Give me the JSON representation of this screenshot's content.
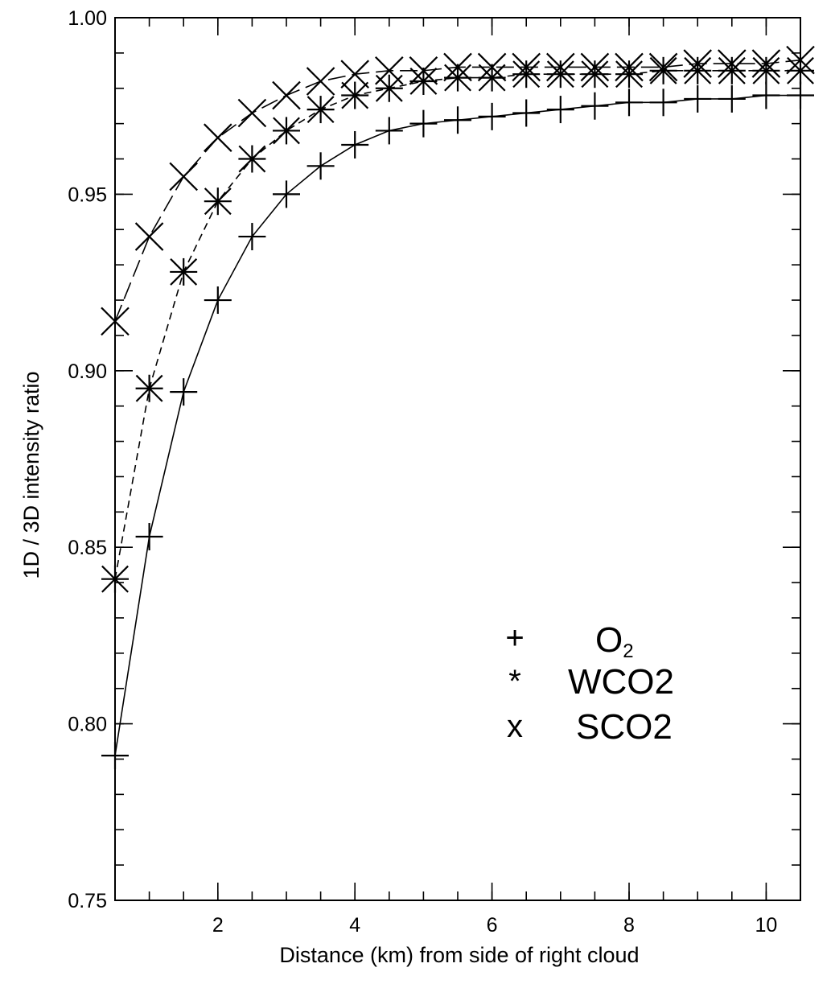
{
  "chart_data": {
    "type": "line",
    "title": "",
    "xlabel": "Distance (km) from side of right cloud",
    "ylabel": "1D / 3D intensity ratio",
    "xlim": [
      0.5,
      10.5
    ],
    "ylim": [
      0.75,
      1.0
    ],
    "x_ticks": [
      2,
      4,
      6,
      8,
      10
    ],
    "x_tick_labels": [
      "2",
      "4",
      "6",
      "8",
      "10"
    ],
    "y_ticks": [
      0.75,
      0.8,
      0.85,
      0.9,
      0.95,
      1.0
    ],
    "y_tick_labels": [
      "0.75",
      "0.80",
      "0.85",
      "0.90",
      "0.95",
      "1.00"
    ],
    "x_minor_step": 0.5,
    "y_minor_step": 0.01,
    "grid": false,
    "legend_position": "lower-right",
    "x": [
      0.5,
      1.0,
      1.5,
      2.0,
      2.5,
      3.0,
      3.5,
      4.0,
      4.5,
      5.0,
      5.5,
      6.0,
      6.5,
      7.0,
      7.5,
      8.0,
      8.5,
      9.0,
      9.5,
      10.0,
      10.5
    ],
    "series": [
      {
        "key": "o2",
        "name": "O",
        "name_subscript": "2",
        "legend_symbol": "+",
        "marker": "plus",
        "line_style": "solid",
        "values": [
          0.791,
          0.853,
          0.894,
          0.92,
          0.938,
          0.95,
          0.958,
          0.964,
          0.968,
          0.97,
          0.971,
          0.972,
          0.973,
          0.974,
          0.975,
          0.976,
          0.976,
          0.977,
          0.977,
          0.978,
          0.978
        ]
      },
      {
        "key": "wco2",
        "name": "WCO2",
        "name_subscript": "",
        "legend_symbol": "*",
        "marker": "asterisk",
        "line_style": "dashed",
        "values": [
          0.841,
          0.895,
          0.928,
          0.948,
          0.96,
          0.968,
          0.974,
          0.978,
          0.98,
          0.982,
          0.983,
          0.983,
          0.984,
          0.984,
          0.984,
          0.984,
          0.985,
          0.985,
          0.985,
          0.985,
          0.985
        ]
      },
      {
        "key": "sco2",
        "name": "SCO2",
        "name_subscript": "",
        "legend_symbol": "x",
        "marker": "cross",
        "line_style": "long-dashed",
        "values": [
          0.914,
          0.938,
          0.955,
          0.966,
          0.973,
          0.978,
          0.982,
          0.984,
          0.985,
          0.985,
          0.986,
          0.986,
          0.986,
          0.986,
          0.986,
          0.986,
          0.986,
          0.987,
          0.987,
          0.987,
          0.988
        ]
      }
    ]
  }
}
